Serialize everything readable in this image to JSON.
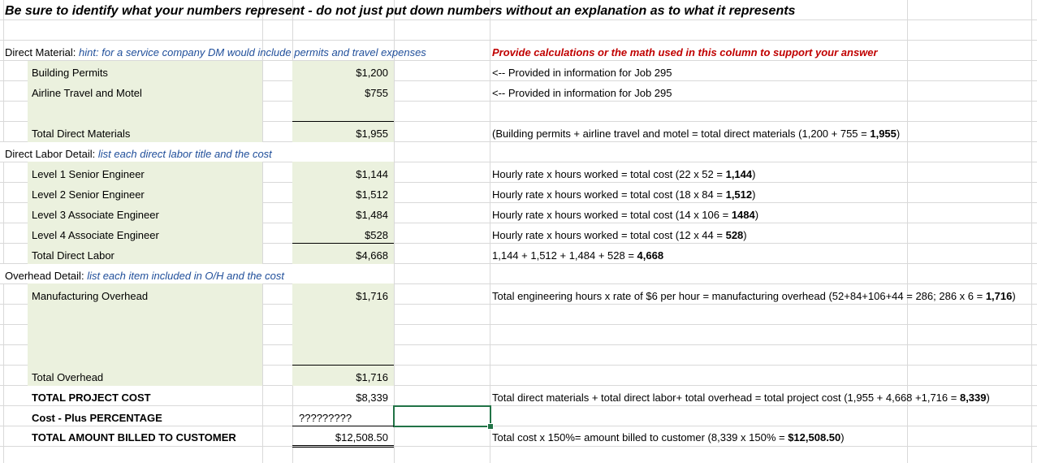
{
  "header": {
    "title": "Be sure to identify what your numbers represent - do not just put down numbers without an explanation as to what it represents"
  },
  "direct_material": {
    "label": "Direct Material:",
    "hint": "hint: for a service company DM would include permits and travel expenses",
    "calc_header": "Provide calculations or the math used in this column to support your  answer",
    "items": [
      {
        "name": "Building Permits",
        "amount": "$1,200",
        "note": "<-- Provided in information for Job 295"
      },
      {
        "name": "Airline Travel and Motel",
        "amount": "$755",
        "note": "<-- Provided in information for Job 295"
      }
    ],
    "total_label": "Total Direct Materials",
    "total_amount": "$1,955",
    "total_calc": "(Building permits + airline travel and motel = total direct materials (1,200 + 755 = ",
    "total_calc_bold": "1,955",
    "total_calc_end": ")"
  },
  "direct_labor": {
    "label": "Direct Labor Detail:",
    "hint": "list each direct labor title and the cost",
    "items": [
      {
        "name": "Level 1 Senior Engineer",
        "amount": "$1,144",
        "calc": "Hourly rate x hours worked = total cost (22 x 52 = ",
        "bold": "1,144",
        "end": ")"
      },
      {
        "name": "Level 2 Senior Engineer",
        "amount": "$1,512",
        "calc": "Hourly rate x hours worked = total cost (18 x 84 = ",
        "bold": "1,512",
        "end": ")"
      },
      {
        "name": "Level 3 Associate Engineer",
        "amount": "$1,484",
        "calc": "Hourly rate x hours worked = total cost (14 x 106 = ",
        "bold": "1484",
        "end": ")"
      },
      {
        "name": "Level 4 Associate Engineer",
        "amount": "$528",
        "calc": "Hourly rate x hours worked = total cost (12 x 44 = ",
        "bold": "528",
        "end": ")"
      }
    ],
    "total_label": "Total Direct Labor",
    "total_amount": "$4,668",
    "total_calc": "1,144 + 1,512 + 1,484 + 528 = ",
    "total_calc_bold": "4,668"
  },
  "overhead": {
    "label": "Overhead Detail:",
    "hint": "list each item included in O/H and the cost",
    "item_name": "Manufacturing Overhead",
    "item_amount": "$1,716",
    "item_calc": "Total engineering hours x rate of $6 per hour = manufacturing overhead (52+84+106+44 = 286; 286 x 6 = ",
    "item_calc_bold": "1,716",
    "item_calc_end": ")",
    "total_label": "Total Overhead",
    "total_amount": "$1,716"
  },
  "summary": {
    "project_cost_label": "TOTAL PROJECT COST",
    "project_cost_amount": "$8,339",
    "project_cost_calc": "Total direct materials + total direct labor+ total overhead = total project cost (1,955 + 4,668 +1,716 = ",
    "project_cost_bold": "8,339",
    "project_cost_end": ")",
    "pct_label": "Cost - Plus PERCENTAGE",
    "pct_value": "?????????",
    "billed_label": "TOTAL AMOUNT BILLED TO CUSTOMER",
    "billed_amount": "$12,508.50",
    "billed_calc": "Total cost x 150%= amount billed to customer (8,339 x 150% = ",
    "billed_bold": "$12,508.50",
    "billed_end": ")"
  },
  "colors": {
    "green_fill": "#ebf1de",
    "hint_blue": "#1f4e9a",
    "hint_red": "#c00000",
    "selection": "#217346"
  }
}
